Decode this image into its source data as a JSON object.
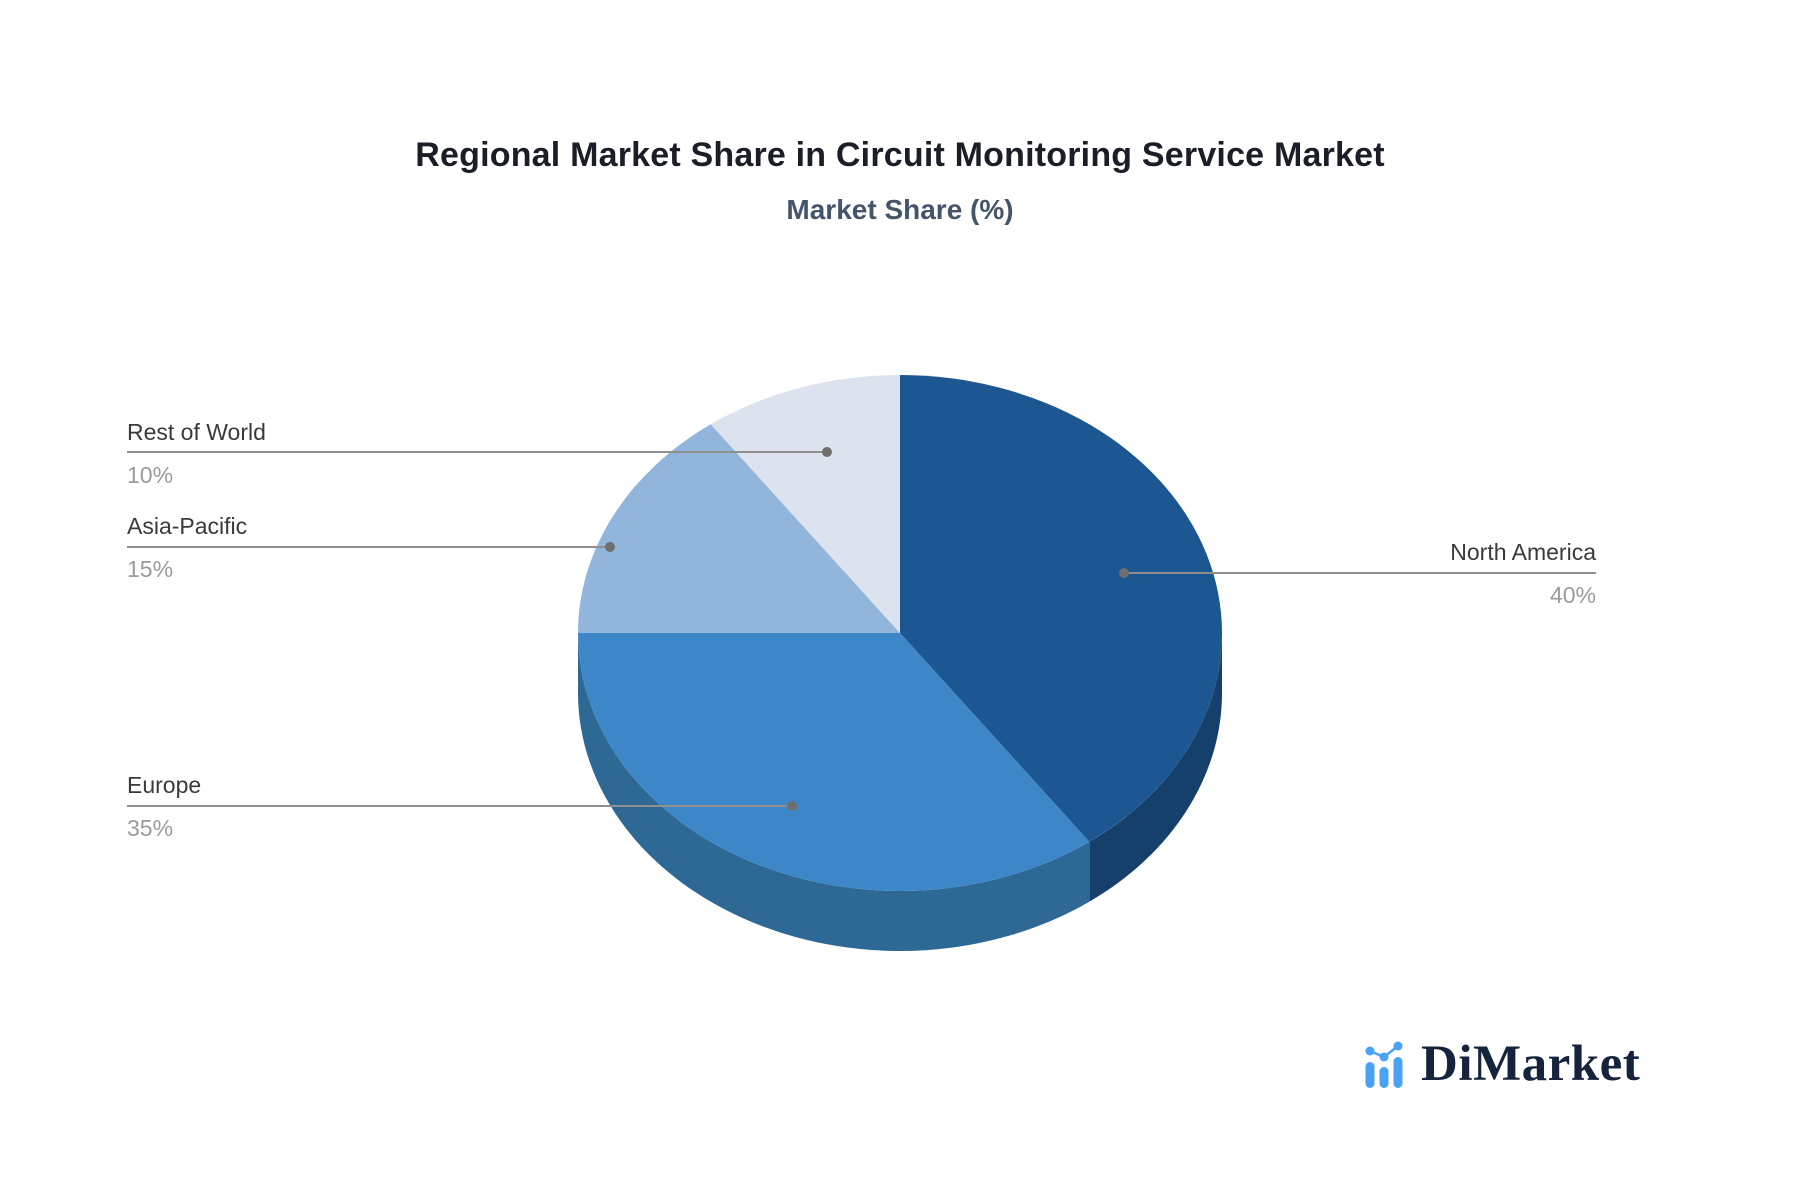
{
  "title": "Regional Market Share in Circuit Monitoring Service Market",
  "subtitle": "Market Share (%)",
  "logo": {
    "text": "DiMarket",
    "icon": "bar-chart-logo-icon"
  },
  "colors": {
    "background": "#ffffff",
    "title": "#1a1e27",
    "subtitle": "#44546a",
    "label": "#3a3a3a",
    "percent": "#9b9b9b",
    "leader_line": "#8f8f8f",
    "leader_dot": "#6e6e6e",
    "logo_text": "#15233c",
    "logo_accent": "#4aa2f5"
  },
  "chart_data": {
    "type": "pie",
    "style": "3d",
    "title": "Regional Market Share in Circuit Monitoring Service Market",
    "subtitle": "Market Share (%)",
    "unit": "%",
    "direction": "clockwise",
    "start_angle_deg": 0,
    "legend_position": "leader-lines",
    "categories": [
      "North America",
      "Europe",
      "Asia-Pacific",
      "Rest of World"
    ],
    "values": [
      40,
      35,
      15,
      10
    ],
    "series": [
      {
        "label": "North America",
        "value": 40,
        "value_label": "40%",
        "color": "#1d5791",
        "side_color": "#16406c"
      },
      {
        "label": "Europe",
        "value": 35,
        "value_label": "35%",
        "color": "#3d87c9",
        "side_color": "#2e6996"
      },
      {
        "label": "Asia-Pacific",
        "value": 15,
        "value_label": "15%",
        "color": "#92b5dc",
        "side_color": "#6d8cb0"
      },
      {
        "label": "Rest of World",
        "value": 10,
        "value_label": "10%",
        "color": "#dce3ee",
        "side_color": "#aab6c8"
      }
    ]
  }
}
